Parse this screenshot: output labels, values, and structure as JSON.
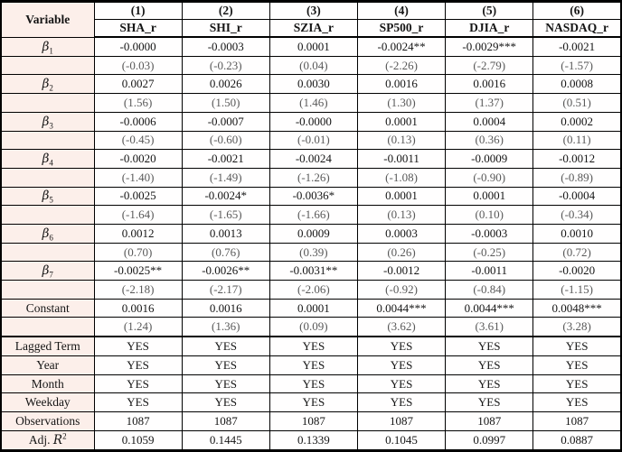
{
  "table": {
    "corner": "Variable",
    "colors": {
      "label_column_bg": "#fcefea",
      "tstat_text": "#595959",
      "border": "#000000",
      "cell_bg": "#fffefe"
    },
    "columns": [
      {
        "num": "(1)",
        "name": "SHA_r"
      },
      {
        "num": "(2)",
        "name": "SHI_r"
      },
      {
        "num": "(3)",
        "name": "SZIA_r"
      },
      {
        "num": "(4)",
        "name": "SP500_r"
      },
      {
        "num": "(5)",
        "name": "DJIA_r"
      },
      {
        "num": "(6)",
        "name": "NASDAQ_r"
      }
    ],
    "rows": [
      {
        "kind": "coef",
        "base": "β",
        "sub": "1",
        "cells": [
          "-0.0000",
          "-0.0003",
          "0.0001",
          "-0.0024**",
          "-0.0029***",
          "-0.0021"
        ]
      },
      {
        "kind": "tstat",
        "cells": [
          "(-0.03)",
          "(-0.23)",
          "(0.04)",
          "(-2.26)",
          "(-2.79)",
          "(-1.57)"
        ]
      },
      {
        "kind": "coef",
        "base": "β",
        "sub": "2",
        "cells": [
          "0.0027",
          "0.0026",
          "0.0030",
          "0.0016",
          "0.0016",
          "0.0008"
        ]
      },
      {
        "kind": "tstat",
        "cells": [
          "(1.56)",
          "(1.50)",
          "(1.46)",
          "(1.30)",
          "(1.37)",
          "(0.51)"
        ]
      },
      {
        "kind": "coef",
        "base": "β",
        "sub": "3",
        "cells": [
          "-0.0006",
          "-0.0007",
          "-0.0000",
          "0.0001",
          "0.0004",
          "0.0002"
        ]
      },
      {
        "kind": "tstat",
        "cells": [
          "(-0.45)",
          "(-0.60)",
          "(-0.01)",
          "(0.13)",
          "(0.36)",
          "(0.11)"
        ]
      },
      {
        "kind": "coef",
        "base": "β",
        "sub": "4",
        "cells": [
          "-0.0020",
          "-0.0021",
          "-0.0024",
          "-0.0011",
          "-0.0009",
          "-0.0012"
        ]
      },
      {
        "kind": "tstat",
        "cells": [
          "(-1.40)",
          "(-1.49)",
          "(-1.26)",
          "(-1.08)",
          "(-0.90)",
          "(-0.89)"
        ]
      },
      {
        "kind": "coef",
        "base": "β",
        "sub": "5",
        "cells": [
          "-0.0025",
          "-0.0024*",
          "-0.0036*",
          "0.0001",
          "0.0001",
          "-0.0004"
        ]
      },
      {
        "kind": "tstat",
        "cells": [
          "(-1.64)",
          "(-1.65)",
          "(-1.66)",
          "(0.13)",
          "(0.10)",
          "(-0.34)"
        ]
      },
      {
        "kind": "coef",
        "base": "β",
        "sub": "6",
        "cells": [
          "0.0012",
          "0.0013",
          "0.0009",
          "0.0003",
          "-0.0003",
          "0.0010"
        ]
      },
      {
        "kind": "tstat",
        "cells": [
          "(0.70)",
          "(0.76)",
          "(0.39)",
          "(0.26)",
          "(-0.25)",
          "(0.72)"
        ]
      },
      {
        "kind": "coef",
        "base": "β",
        "sub": "7",
        "cells": [
          "-0.0025**",
          "-0.0026**",
          "-0.0031**",
          "-0.0012",
          "-0.0011",
          "-0.0020"
        ]
      },
      {
        "kind": "tstat",
        "cells": [
          "(-2.18)",
          "(-2.17)",
          "(-2.06)",
          "(-0.92)",
          "(-0.84)",
          "(-1.15)"
        ]
      },
      {
        "kind": "coef",
        "base": "Constant",
        "sub": "",
        "cells": [
          "0.0016",
          "0.0016",
          "0.0001",
          "0.0044***",
          "0.0044***",
          "0.0048***"
        ]
      },
      {
        "kind": "tstat",
        "cells": [
          "(1.24)",
          "(1.36)",
          "(0.09)",
          "(3.62)",
          "(3.61)",
          "(3.28)"
        ]
      },
      {
        "kind": "info",
        "base": "Lagged Term",
        "thick_top": true,
        "cells": [
          "YES",
          "YES",
          "YES",
          "YES",
          "YES",
          "YES"
        ]
      },
      {
        "kind": "info",
        "base": "Year",
        "cells": [
          "YES",
          "YES",
          "YES",
          "YES",
          "YES",
          "YES"
        ]
      },
      {
        "kind": "info",
        "base": "Month",
        "cells": [
          "YES",
          "YES",
          "YES",
          "YES",
          "YES",
          "YES"
        ]
      },
      {
        "kind": "info",
        "base": "Weekday",
        "cells": [
          "YES",
          "YES",
          "YES",
          "YES",
          "YES",
          "YES"
        ]
      },
      {
        "kind": "info",
        "base": "Observations",
        "cells": [
          "1087",
          "1087",
          "1087",
          "1087",
          "1087",
          "1087"
        ]
      },
      {
        "kind": "info",
        "base": "Adj. ",
        "italic_part": "R",
        "sup": "2",
        "cells": [
          "0.1059",
          "0.1445",
          "0.1339",
          "0.1045",
          "0.0997",
          "0.0887"
        ]
      }
    ]
  }
}
